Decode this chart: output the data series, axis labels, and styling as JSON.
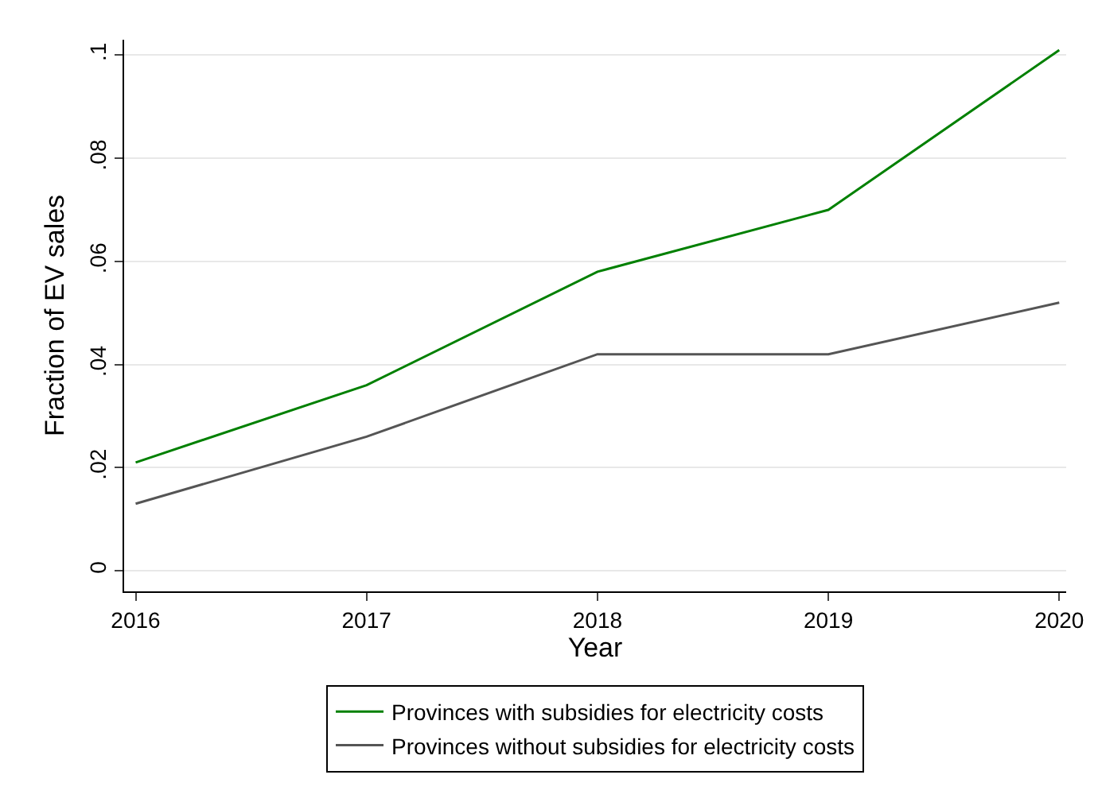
{
  "chart_data": {
    "type": "line",
    "xlabel": "Year",
    "ylabel": "Fraction of EV sales",
    "x": [
      2016,
      2017,
      2018,
      2019,
      2020
    ],
    "series": [
      {
        "name": "Provinces with subsidies for electricity costs",
        "color": "#008000",
        "values": [
          0.021,
          0.036,
          0.058,
          0.07,
          0.101
        ]
      },
      {
        "name": "Provinces without subsidies for electricity costs",
        "color": "#555555",
        "values": [
          0.013,
          0.026,
          0.042,
          0.042,
          0.052
        ]
      }
    ],
    "xlim": [
      2015.95,
      2020.03
    ],
    "xticks": [
      2016,
      2017,
      2018,
      2019,
      2020
    ],
    "ylim": [
      -0.004,
      0.103
    ],
    "yticks": [
      {
        "value": 0,
        "label": "0"
      },
      {
        "value": 0.02,
        "label": ".02"
      },
      {
        "value": 0.04,
        "label": ".04"
      },
      {
        "value": 0.06,
        "label": ".06"
      },
      {
        "value": 0.08,
        "label": ".08"
      },
      {
        "value": 0.1,
        "label": ".1"
      }
    ],
    "grid": "y",
    "legend": "bottom",
    "marker": "none",
    "line_style": "solid"
  }
}
